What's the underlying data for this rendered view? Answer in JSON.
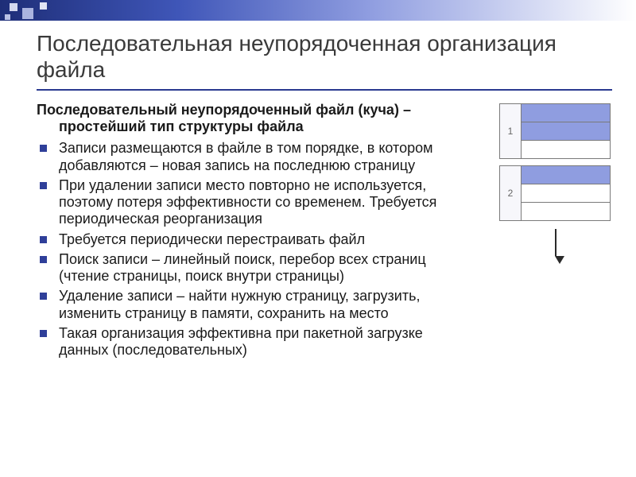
{
  "title": "Последовательная неупорядоченная организация файла",
  "lead": "Последовательный неупорядоченный файл (куча) – простейший тип структуры файла",
  "bullets": [
    "Записи размещаются в файле в том порядке, в котором добавляются – новая запись на последнюю страницу",
    "При удалении записи место повторно не используется, поэтому потеря эффективности со временем. Требуется периодическая реорганизация",
    "Требуется периодически перестраивать файл",
    "Поиск записи – линейный поиск, перебор всех страниц (чтение страницы, поиск внутри страницы)",
    "Удаление записи – найти нужную страницу, загрузить, изменить страницу в памяти, сохранить на место",
    "Такая организация эффективна при пакетной загрузке данных (последовательных)"
  ],
  "diagram": {
    "pages": [
      {
        "label": "1",
        "rows": [
          "fill",
          "fill",
          "empty"
        ]
      },
      {
        "label": "2",
        "rows": [
          "fill",
          "empty",
          "empty"
        ]
      }
    ],
    "colors": {
      "fill": "#8f9de0",
      "empty": "#ffffff",
      "border": "#7a7a7a",
      "numcell_bg": "#f7f7fb",
      "numcell_text": "#666666",
      "arrow": "#2a2a2a"
    }
  },
  "accent": {
    "bullet_color": "#2f3f99",
    "rule_color": "#2a3a90",
    "topbar_gradient": [
      "#1e2e78",
      "#3f56b8",
      "#8f9de0",
      "#ffffff"
    ]
  }
}
